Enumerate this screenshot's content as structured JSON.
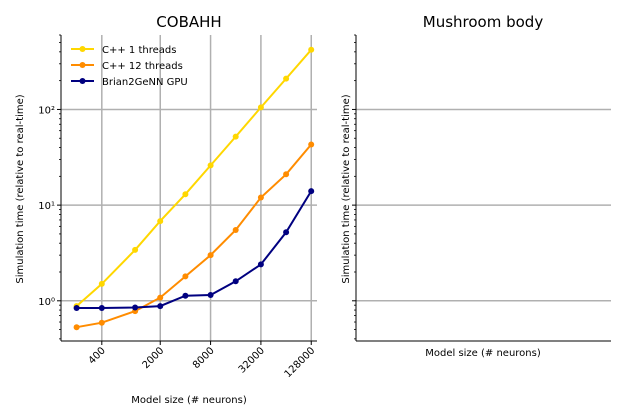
{
  "chart_data": [
    {
      "type": "line",
      "title": "COBAHH",
      "xlabel": "Model size (# neurons)",
      "ylabel": "Simulation time (relative to real-time)",
      "xscale": "log",
      "yscale": "log",
      "xlim": [
        130,
        150000
      ],
      "ylim": [
        0.38,
        600
      ],
      "xticks": [
        400,
        2000,
        8000,
        32000,
        128000
      ],
      "xtick_labels": [
        "400",
        "2000",
        "8000",
        "32000",
        "128000"
      ],
      "yticks": [
        1,
        10,
        100
      ],
      "ytick_labels": [
        "10⁰",
        "10¹",
        "10²"
      ],
      "grid": true,
      "legend_position": "upper-left",
      "x": [
        200,
        400,
        1000,
        2000,
        4000,
        8000,
        16000,
        32000,
        64000,
        128000
      ],
      "series": [
        {
          "name": "C++  1 threads",
          "color": "#FFD700",
          "values": [
            0.88,
            1.5,
            3.4,
            6.8,
            13,
            26,
            52,
            105,
            210,
            420
          ]
        },
        {
          "name": "C++ 12 threads",
          "color": "#FF8C00",
          "values": [
            0.53,
            0.59,
            0.78,
            1.08,
            1.8,
            3.0,
            5.5,
            12,
            21,
            43
          ]
        },
        {
          "name": "Brian2GeNN GPU",
          "color": "#000080",
          "values": [
            0.84,
            0.84,
            0.85,
            0.88,
            1.13,
            1.15,
            1.6,
            2.4,
            5.2,
            14
          ]
        }
      ]
    },
    {
      "type": "line",
      "title": "Mushroom body",
      "xlabel": "Model size (# neurons)",
      "ylabel": "Simulation time (relative to real-time)",
      "yscale": "log",
      "ylim": [
        0.38,
        600
      ],
      "yticks": [
        1,
        10,
        100
      ],
      "grid": true,
      "series": []
    }
  ]
}
